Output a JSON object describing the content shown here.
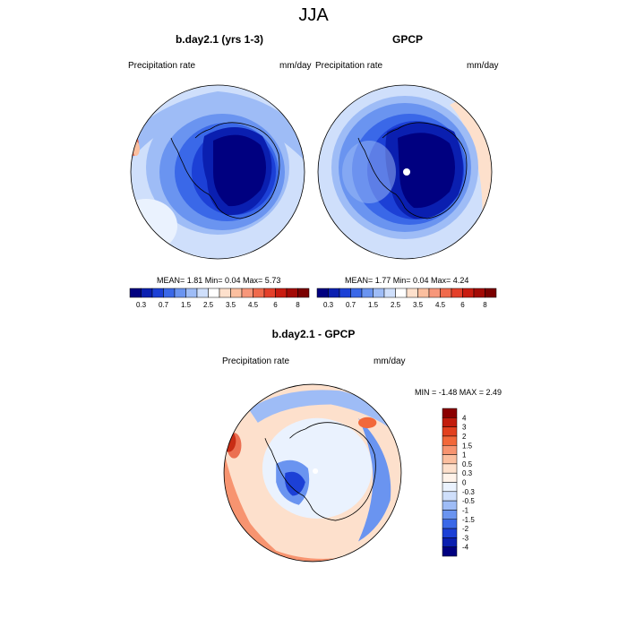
{
  "figure_title": "JJA",
  "panels": [
    {
      "title": "b.day2.1 (yrs 1-3)",
      "left_label": "Precipitation rate",
      "right_label": "mm/day",
      "stats": "MEAN=   1.81  Min=   0.04  Max=   5.73"
    },
    {
      "title": "GPCP",
      "left_label": "Precipitation rate",
      "right_label": "mm/day",
      "stats": "MEAN=   1.77  Min=   0.04  Max=   4.24"
    }
  ],
  "diff_panel": {
    "title": "b.day2.1 - GPCP",
    "left_label": "Precipitation rate",
    "right_label": "mm/day",
    "stats": "MIN =  -1.48 MAX =   2.49"
  },
  "abs_colorbar": {
    "labels": [
      "0.3",
      "0.7",
      "1.5",
      "2.5",
      "3.5",
      "4.5",
      "6",
      "8"
    ],
    "colors": [
      "#000080",
      "#0a1fb0",
      "#1c40d6",
      "#3a68e8",
      "#6a94f0",
      "#9ebcf6",
      "#cfdffb",
      "#ffffff",
      "#fde0cc",
      "#fbbf9f",
      "#f7977a",
      "#f06a4c",
      "#e4402a",
      "#c91c10",
      "#a30a05",
      "#7a0000"
    ]
  },
  "diff_colorbar": {
    "labels": [
      "4",
      "3",
      "2",
      "1.5",
      "1",
      "0.5",
      "0.3",
      "0",
      "-0.3",
      "-0.5",
      "-1",
      "-1.5",
      "-2",
      "-3",
      "-4"
    ],
    "colors": [
      "#8b0000",
      "#c21c0c",
      "#e2401e",
      "#f2683a",
      "#f79470",
      "#fbbf9f",
      "#fde0cc",
      "#fff3ea",
      "#eaf2fe",
      "#cfdffb",
      "#9ebcf6",
      "#6a94f0",
      "#3a68e8",
      "#1c40d6",
      "#0a1fb0",
      "#000080"
    ]
  }
}
